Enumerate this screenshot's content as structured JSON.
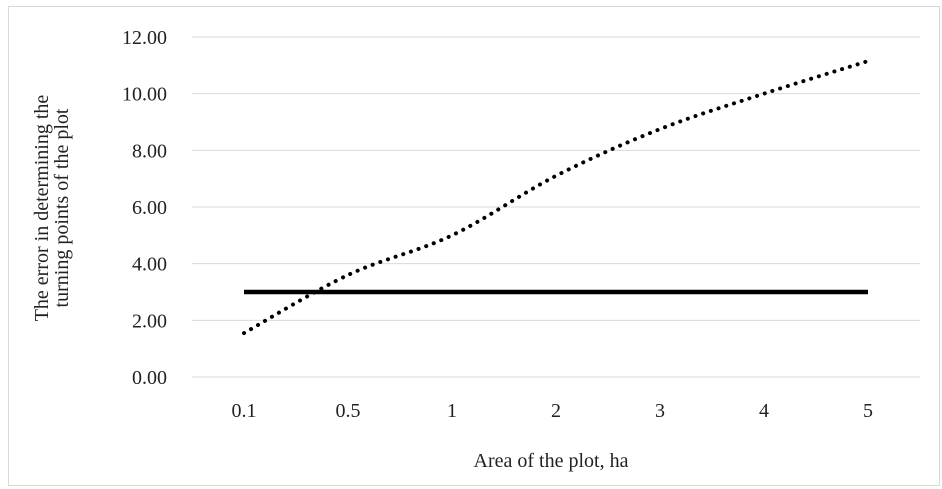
{
  "chart_data": {
    "type": "line",
    "categories": [
      "0.1",
      "0.5",
      "1",
      "2",
      "3",
      "4",
      "5"
    ],
    "series": [
      {
        "style": "dotted",
        "color": "#000000",
        "values": [
          1.55,
          3.6,
          5.0,
          7.1,
          8.75,
          10.0,
          11.15
        ]
      },
      {
        "style": "solid",
        "color": "#000000",
        "values": [
          3.0,
          3.0,
          3.0,
          3.0,
          3.0,
          3.0,
          3.0
        ]
      }
    ],
    "y_ticks": [
      "0.00",
      "2.00",
      "4.00",
      "6.00",
      "8.00",
      "10.00",
      "12.00"
    ],
    "ylim": [
      0,
      12
    ],
    "xlabel": "Area of the plot, ha",
    "ylabel_lines": [
      "The error in determining the",
      "turning points of the plot"
    ],
    "grid": "horizontal",
    "gridline_color": "#d9d9d9"
  }
}
